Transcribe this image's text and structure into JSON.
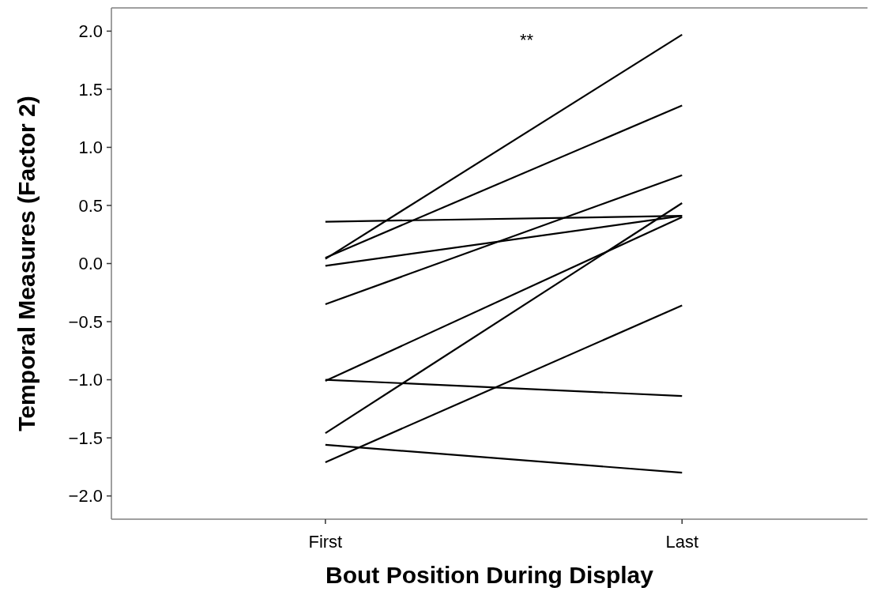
{
  "chart_data": {
    "type": "line",
    "xlabel": "Bout Position During Display",
    "ylabel": "Temporal Measures (Factor 2)",
    "annotations": [
      "**"
    ],
    "categories": [
      "First",
      "Last"
    ],
    "ylim": [
      -2.2,
      2.2
    ],
    "yticks": [
      {
        "value": 2,
        "label": "2.0"
      },
      {
        "value": 1.5,
        "label": "1.5"
      },
      {
        "value": 1,
        "label": "1.0"
      },
      {
        "value": 0.5,
        "label": "0.5"
      },
      {
        "value": 0,
        "label": "0.0"
      },
      {
        "value": -0.5,
        "label": "−0.5"
      },
      {
        "value": -1,
        "label": "−1.0"
      },
      {
        "value": -1.5,
        "label": "−1.5"
      },
      {
        "value": -2,
        "label": "−2.0"
      }
    ],
    "grid": false,
    "marker": "none",
    "line_style": "solid",
    "series": [
      {
        "color": "#000000",
        "values": [
          0.04,
          1.97
        ]
      },
      {
        "color": "#000000",
        "values": [
          0.05,
          1.36
        ]
      },
      {
        "color": "#000000",
        "values": [
          -0.35,
          0.76
        ]
      },
      {
        "color": "#000000",
        "values": [
          0.36,
          0.41
        ]
      },
      {
        "color": "#000000",
        "values": [
          -0.02,
          0.41
        ]
      },
      {
        "color": "#000000",
        "values": [
          -1.01,
          0.4
        ]
      },
      {
        "color": "#000000",
        "values": [
          -1.46,
          0.52
        ]
      },
      {
        "color": "#000000",
        "values": [
          -1.0,
          -1.14
        ]
      },
      {
        "color": "#000000",
        "values": [
          -1.71,
          -0.36
        ]
      },
      {
        "color": "#000000",
        "values": [
          -1.56,
          -1.8
        ]
      }
    ]
  }
}
